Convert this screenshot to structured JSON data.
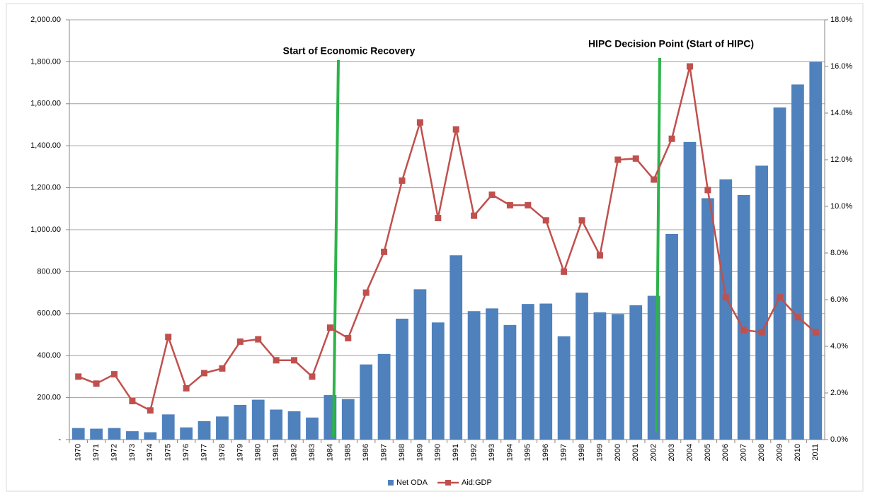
{
  "chart_data": {
    "type": "bar-line",
    "annotations": [
      "Start of Economic Recovery",
      "HIPC Decision Point (Start of HIPC)"
    ],
    "categories": [
      "1970",
      "1971",
      "1972",
      "1973",
      "1974",
      "1975",
      "1976",
      "1977",
      "1978",
      "1979",
      "1980",
      "1981",
      "1982",
      "1983",
      "1984",
      "1985",
      "1986",
      "1987",
      "1988",
      "1989",
      "1990",
      "1991",
      "1992",
      "1993",
      "1994",
      "1995",
      "1996",
      "1997",
      "1998",
      "1999",
      "2000",
      "2001",
      "2002",
      "2003",
      "2004",
      "2005",
      "2006",
      "2007",
      "2008",
      "2009",
      "2010",
      "2011"
    ],
    "series": [
      {
        "name": "Net ODA",
        "color": "#4f81bd",
        "type": "bar",
        "values": [
          55,
          52,
          55,
          40,
          35,
          120,
          58,
          88,
          110,
          165,
          190,
          143,
          135,
          105,
          212,
          193,
          358,
          408,
          576,
          716,
          558,
          878,
          612,
          625,
          546,
          646,
          648,
          492,
          700,
          606,
          598,
          640,
          685,
          980,
          1418,
          1150,
          1240,
          1165,
          1305,
          1582,
          1692,
          1800
        ]
      },
      {
        "name": "Aid:GDP",
        "color": "#c0504d",
        "type": "line",
        "axis": "y2",
        "values": [
          2.7,
          2.4,
          2.8,
          1.65,
          1.25,
          4.4,
          2.2,
          2.85,
          3.05,
          4.2,
          4.3,
          3.4,
          3.4,
          2.7,
          4.8,
          4.35,
          6.3,
          8.05,
          11.1,
          13.6,
          9.5,
          13.3,
          9.6,
          10.5,
          10.05,
          10.05,
          9.4,
          7.2,
          9.4,
          7.9,
          12.0,
          12.05,
          11.15,
          12.9,
          16.0,
          10.7,
          6.1,
          4.7,
          4.6,
          6.1,
          5.25,
          4.6
        ]
      }
    ],
    "ylim": [
      0,
      2000
    ],
    "yticks": [
      {
        "value": 0,
        "label": "-"
      },
      {
        "value": 200,
        "label": "200.00"
      },
      {
        "value": 400,
        "label": "400.00"
      },
      {
        "value": 600,
        "label": "600.00"
      },
      {
        "value": 800,
        "label": "800.00"
      },
      {
        "value": 1000,
        "label": "1,000.00"
      },
      {
        "value": 1200,
        "label": "1,200.00"
      },
      {
        "value": 1400,
        "label": "1,400.00"
      },
      {
        "value": 1600,
        "label": "1,600.00"
      },
      {
        "value": 1800,
        "label": "1,800.00"
      },
      {
        "value": 2000,
        "label": "2,000.00"
      }
    ],
    "y2lim": [
      0,
      18
    ],
    "y2ticks": [
      {
        "value": 0,
        "label": "0.0%"
      },
      {
        "value": 2,
        "label": "2.0%"
      },
      {
        "value": 4,
        "label": "4.0%"
      },
      {
        "value": 6,
        "label": "6.0%"
      },
      {
        "value": 8,
        "label": "8.0%"
      },
      {
        "value": 10,
        "label": "10.0%"
      },
      {
        "value": 12,
        "label": "12.0%"
      },
      {
        "value": 14,
        "label": "14.0%"
      },
      {
        "value": 16,
        "label": "16.0%"
      },
      {
        "value": 18,
        "label": "18.0%"
      }
    ],
    "grid": true,
    "legend": "bottom"
  }
}
